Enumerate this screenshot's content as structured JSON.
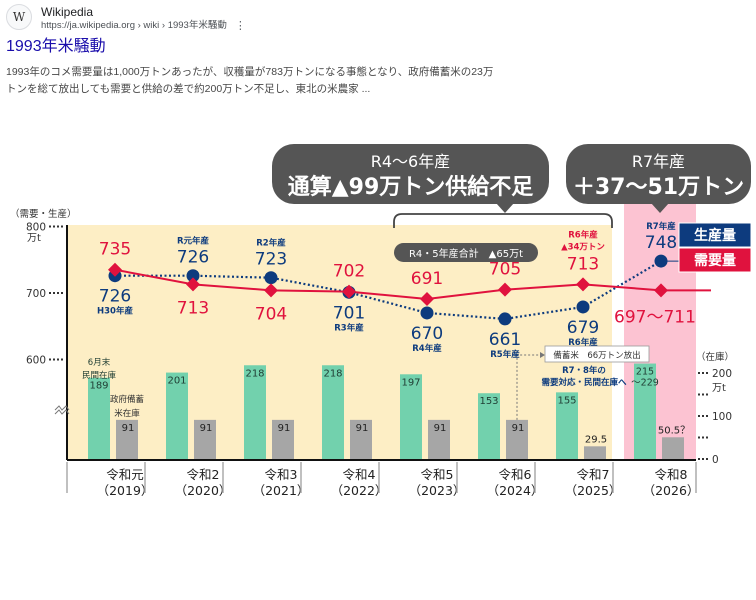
{
  "search_result": {
    "favicon_letter": "W",
    "site_name": "Wikipedia",
    "url": "https://ja.wikipedia.org › wiki › 1993年米騒動",
    "menu_icon": "more-vert-icon",
    "title": "1993年米騒動",
    "snippet_line1": "1993年のコメ需要量は1,000万トンあったが、収穫量が783万トンになる事態となり、政府備蓄米の23万",
    "snippet_line2": "トンを総て放出しても需要と供給の差で約200万トン不足し、東北の米農家 ..."
  },
  "colors": {
    "production": "#0d3b7e",
    "demand": "#e0123e",
    "private_stock": "#72d1ad",
    "gov_stock": "#a6a6a6",
    "bg_past": "#fdeec5",
    "bg_forecast": "#fcc3d2",
    "bubble": "#555555"
  },
  "chart_data": {
    "type": "bar+line",
    "title": "",
    "callouts": [
      {
        "line1": "R4〜6年産",
        "line2": "通算▲99万トン供給不足"
      },
      {
        "line1": "R7年産",
        "line2": "＋37〜51万トン"
      }
    ],
    "bracket_tag": "R4・5年産合計　▲65万t",
    "left_axis": {
      "label": "（需要・生産）",
      "unit": "万t",
      "ticks": [
        800,
        700,
        600
      ],
      "range": [
        600,
        800
      ]
    },
    "right_axis": {
      "label": "（在庫）",
      "unit": "万t",
      "ticks": [
        200,
        100,
        0
      ],
      "range": [
        0,
        200
      ]
    },
    "categories": [
      {
        "era": "令和元",
        "year": "（2019）"
      },
      {
        "era": "令和2",
        "year": "（2020）"
      },
      {
        "era": "令和3",
        "year": "（2021）"
      },
      {
        "era": "令和4",
        "year": "（2022）"
      },
      {
        "era": "令和5",
        "year": "（2023）"
      },
      {
        "era": "令和6",
        "year": "（2024）"
      },
      {
        "era": "令和7",
        "year": "（2025）"
      },
      {
        "era": "令和8",
        "year": "（2026）"
      }
    ],
    "legend": [
      {
        "name": "生産量",
        "key": "production"
      },
      {
        "name": "需要量",
        "key": "demand"
      }
    ],
    "series": [
      {
        "name": "生産量",
        "style": "dotted-line-circle",
        "values": [
          726,
          726,
          723,
          701,
          670,
          661,
          679,
          748
        ],
        "labels": [
          "726",
          "726",
          "723",
          "701",
          "670",
          "661",
          "679",
          "748"
        ],
        "sublabels": [
          "H30年産",
          "R元年産",
          "R2年産",
          "R3年産",
          "R4年産",
          "R5年産",
          "R6年産",
          "R7年産"
        ]
      },
      {
        "name": "需要量",
        "style": "solid-line-diamond",
        "values": [
          735,
          713,
          704,
          702,
          691,
          705,
          713,
          704
        ],
        "labels": [
          "735",
          "713",
          "704",
          "702",
          "691",
          "705",
          "713",
          "697〜711"
        ],
        "note_r6": "R6年産",
        "note_r6_shortfall": "▲34万トン"
      },
      {
        "name": "6月末民間在庫",
        "style": "bar",
        "values": [
          189,
          201,
          218,
          218,
          197,
          153,
          155,
          222
        ],
        "labels": [
          "189",
          "201",
          "218",
          "218",
          "197",
          "153",
          "155",
          "215\n〜229"
        ],
        "caption": [
          "6月末",
          "民間在庫"
        ]
      },
      {
        "name": "政府備蓄米在庫",
        "style": "bar",
        "values": [
          91,
          91,
          91,
          91,
          91,
          91,
          29.5,
          50.5
        ],
        "labels": [
          "91",
          "91",
          "91",
          "91",
          "91",
          "91",
          "29.5",
          "50.5？"
        ],
        "caption": [
          "政府備蓄",
          "米在庫"
        ]
      }
    ],
    "annotations": {
      "release_box": "備蓄米　66万トン放出",
      "release_note_line1": "R7・8年の",
      "release_note_line2": "需要対応・民間在庫へ"
    }
  }
}
